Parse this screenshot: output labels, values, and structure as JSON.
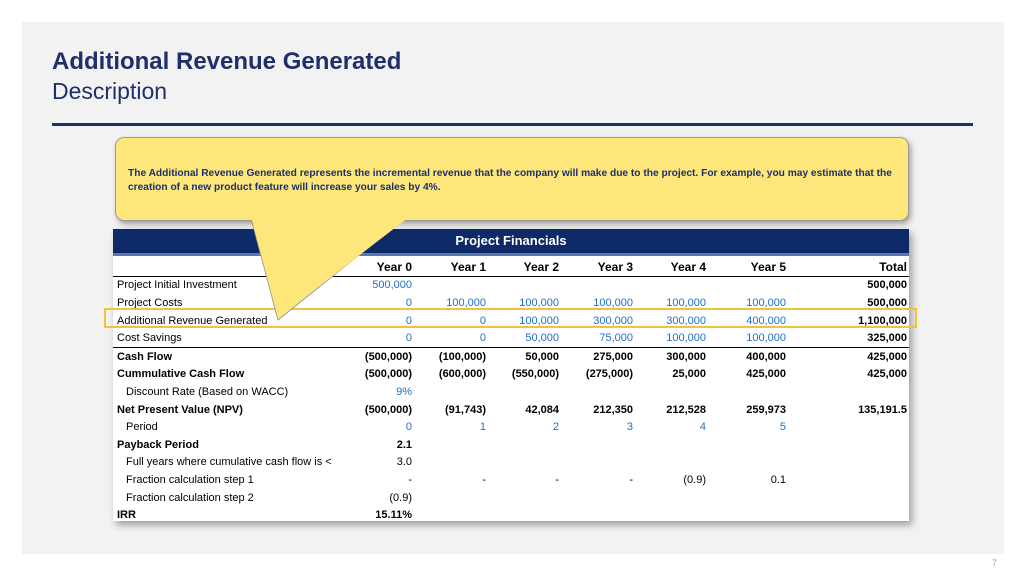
{
  "header": {
    "title": "Additional Revenue Generated",
    "subtitle": "Description"
  },
  "callout": {
    "text": "The Additional Revenue Generated represents the incremental revenue that the company will make due to the project. For example, you may estimate that the creation of a new product feature will increase your sales by 4%."
  },
  "table": {
    "title": "Project Financials",
    "columns": [
      "",
      "Year 0",
      "Year 1",
      "Year 2",
      "Year 3",
      "Year 4",
      "Year 5",
      "Total"
    ],
    "rows": [
      {
        "label": "Project Initial Investment",
        "values": [
          "500,000",
          "",
          "",
          "",
          "",
          "",
          "500,000"
        ]
      },
      {
        "label": "Project Costs",
        "values": [
          "0",
          "100,000",
          "100,000",
          "100,000",
          "100,000",
          "100,000",
          "500,000"
        ]
      },
      {
        "label": "Additional Revenue Generated",
        "values": [
          "0",
          "0",
          "100,000",
          "300,000",
          "300,000",
          "400,000",
          "1,100,000"
        ]
      },
      {
        "label": "Cost Savings",
        "values": [
          "0",
          "0",
          "50,000",
          "75,000",
          "100,000",
          "100,000",
          "325,000"
        ]
      },
      {
        "label": "Cash Flow",
        "values": [
          "(500,000)",
          "(100,000)",
          "50,000",
          "275,000",
          "300,000",
          "400,000",
          "425,000"
        ]
      },
      {
        "label": "Cummulative Cash Flow",
        "values": [
          "(500,000)",
          "(600,000)",
          "(550,000)",
          "(275,000)",
          "25,000",
          "425,000",
          "425,000"
        ]
      },
      {
        "label": "Discount Rate (Based on WACC)",
        "values": [
          "9%",
          "",
          "",
          "",
          "",
          "",
          ""
        ]
      },
      {
        "label": "Net Present Value (NPV)",
        "values": [
          "(500,000)",
          "(91,743)",
          "42,084",
          "212,350",
          "212,528",
          "259,973",
          "135,191.5"
        ]
      },
      {
        "label": "Period",
        "values": [
          "0",
          "1",
          "2",
          "3",
          "4",
          "5",
          ""
        ]
      },
      {
        "label": "Payback Period",
        "values": [
          "2.1",
          "",
          "",
          "",
          "",
          "",
          ""
        ]
      },
      {
        "label": "Full years where cumulative cash flow is <",
        "values": [
          "3.0",
          "",
          "",
          "",
          "",
          "",
          ""
        ]
      },
      {
        "label": "Fraction calculation step 1",
        "values": [
          "-",
          "-",
          "-",
          "-",
          "(0.9)",
          "0.1",
          ""
        ]
      },
      {
        "label": "Fraction calculation step 2",
        "values": [
          "(0.9)",
          "",
          "",
          "",
          "",
          "",
          ""
        ]
      },
      {
        "label": "IRR",
        "values": [
          "15.11%",
          "",
          "",
          "",
          "",
          "",
          ""
        ]
      }
    ]
  },
  "colors": {
    "title": "#1f2f6b",
    "callout_fill": "#fde77a",
    "table_header": "#0e2a66",
    "input_blue": "#1f6ec9",
    "highlight": "#f2c23b"
  },
  "page_number": "7"
}
